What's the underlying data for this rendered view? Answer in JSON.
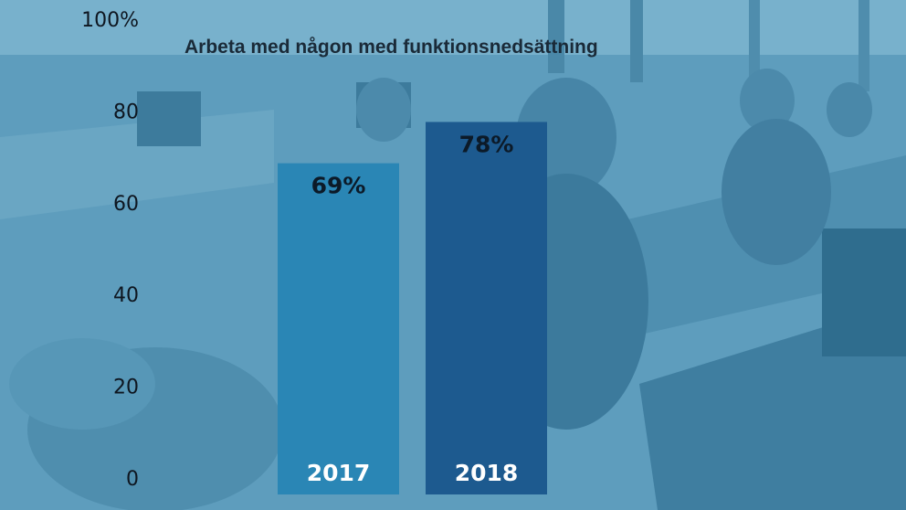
{
  "chart_data": {
    "type": "bar",
    "title": "Arbeta med någon med funktionsnedsättning",
    "categories": [
      "2017",
      "2018"
    ],
    "values": [
      69,
      78
    ],
    "value_labels": [
      "69%",
      "78%"
    ],
    "ylim": [
      0,
      100
    ],
    "yticks": [
      0,
      20,
      40,
      60,
      80,
      100
    ],
    "ytick_labels": [
      "0",
      "20",
      "40",
      "60",
      "80",
      "100%"
    ],
    "grid": false,
    "bar_colors": [
      "#2a86b5",
      "#1d5a8f"
    ],
    "background": "photo of an open-plan office with people working at desks, blue tint"
  }
}
